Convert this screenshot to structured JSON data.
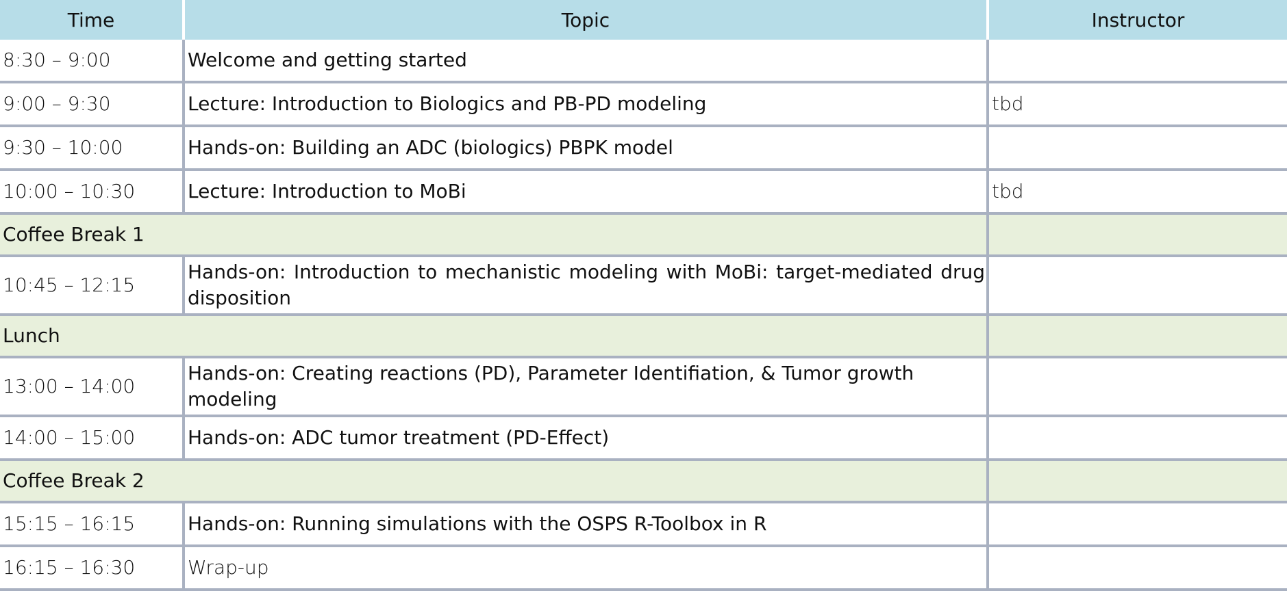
{
  "table": {
    "headers": {
      "time": "Time",
      "topic": "Topic",
      "instructor": "Instructor"
    },
    "rows": [
      {
        "time": "8:30 – 9:00",
        "topic": "Welcome and getting started",
        "instructor": ""
      },
      {
        "time": "9:00 – 9:30",
        "topic": "Lecture: Introduction to Biologics and PB-PD modeling",
        "instructor": "tbd"
      },
      {
        "time": "9:30 – 10:00",
        "topic": "Hands-on: Building an ADC (biologics) PBPK model",
        "instructor": ""
      },
      {
        "time": "10:00 – 10:30",
        "topic": "Lecture: Introduction to MoBi",
        "instructor": "tbd"
      },
      {
        "break": "Coffee Break 1"
      },
      {
        "time": "10:45 – 12:15",
        "topic": "Hands-on: Introduction to mechanistic modeling with MoBi: target-mediated drug disposition",
        "instructor": ""
      },
      {
        "break": "Lunch"
      },
      {
        "time": "13:00 – 14:00",
        "topic": "Hands-on: Creating reactions (PD), Parameter Identifiation, & Tumor growth modeling",
        "instructor": ""
      },
      {
        "time": "14:00 – 15:00",
        "topic": "Hands-on: ADC tumor treatment (PD-Effect)",
        "instructor": ""
      },
      {
        "break": "Coffee Break 2"
      },
      {
        "time": "15:15 – 16:15",
        "topic": "Hands-on: Running simulations with the OSPS R-Toolbox in R",
        "instructor": ""
      },
      {
        "time": "16:15 – 16:30",
        "topic": "Wrap-up",
        "instructor": ""
      }
    ]
  },
  "colors": {
    "header_bg": "#b7dde8",
    "break_bg": "#e8f0dc",
    "grid_line": "#a9b1c1"
  }
}
